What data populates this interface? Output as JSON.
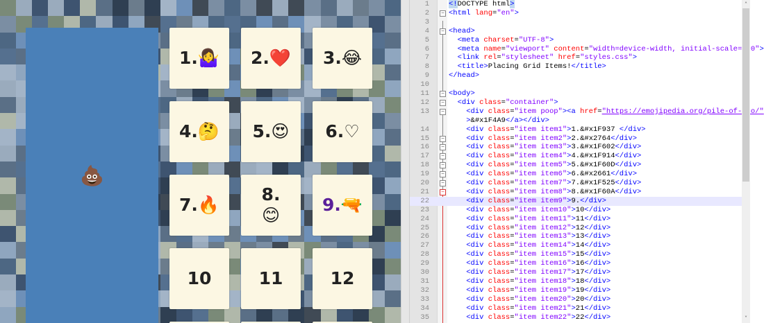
{
  "browser": {
    "poop_emoji": "💩",
    "cards": [
      {
        "label": "1.🤷‍♀️"
      },
      {
        "label": "2.❤️"
      },
      {
        "label": "3.😂"
      },
      {
        "label": "4.🤔"
      },
      {
        "label": "5.😍"
      },
      {
        "label": "6.♡"
      },
      {
        "label": "7.🔥"
      },
      {
        "label": "8.\n😊"
      },
      {
        "label": "9.🔫"
      },
      {
        "label": "10"
      },
      {
        "label": "11"
      },
      {
        "label": "12"
      },
      {
        "label": ""
      },
      {
        "label": ""
      },
      {
        "label": ""
      }
    ],
    "colors": {
      "panel": "#4a80b8",
      "card": "#fcf7e3",
      "item9": "#5b1f9a"
    }
  },
  "editor": {
    "lines": [
      {
        "num": "1",
        "segs": [
          [
            "t sel",
            "<!"
          ],
          [
            "x",
            "DOCTYPE html"
          ],
          [
            "t sel",
            ">"
          ]
        ]
      },
      {
        "num": "2",
        "fold": "box",
        "segs": [
          [
            "t",
            "<html "
          ],
          [
            "a",
            "lang"
          ],
          [
            "x",
            "="
          ],
          [
            "v",
            "\"en\""
          ],
          [
            "t",
            ">"
          ]
        ]
      },
      {
        "num": "3",
        "segs": []
      },
      {
        "num": "4",
        "fold": "box",
        "segs": [
          [
            "t",
            "<head>"
          ]
        ]
      },
      {
        "num": "5",
        "segs": [
          [
            "t",
            "  <meta "
          ],
          [
            "a",
            "charset"
          ],
          [
            "x",
            "="
          ],
          [
            "v",
            "\"UTF-8\""
          ],
          [
            "t",
            ">"
          ]
        ]
      },
      {
        "num": "6",
        "segs": [
          [
            "t",
            "  <meta "
          ],
          [
            "a",
            "name"
          ],
          [
            "x",
            "="
          ],
          [
            "v",
            "\"viewport\""
          ],
          [
            "t",
            " "
          ],
          [
            "a",
            "content"
          ],
          [
            "x",
            "="
          ],
          [
            "v",
            "\"width=device-width, initial-scale=1.0\""
          ],
          [
            "t",
            ">"
          ]
        ]
      },
      {
        "num": "7",
        "segs": [
          [
            "t",
            "  <link "
          ],
          [
            "a",
            "rel"
          ],
          [
            "x",
            "="
          ],
          [
            "v",
            "\"stylesheet\""
          ],
          [
            "t",
            " "
          ],
          [
            "a",
            "href"
          ],
          [
            "x",
            "="
          ],
          [
            "v",
            "\"styles.css\""
          ],
          [
            "t",
            ">"
          ]
        ]
      },
      {
        "num": "8",
        "segs": [
          [
            "t",
            "  <title>"
          ],
          [
            "x",
            "Placing Grid Items!"
          ],
          [
            "t",
            "</title>"
          ]
        ]
      },
      {
        "num": "9",
        "segs": [
          [
            "t",
            "</head>"
          ]
        ]
      },
      {
        "num": "10",
        "segs": []
      },
      {
        "num": "11",
        "fold": "box",
        "segs": [
          [
            "t",
            "<body>"
          ]
        ]
      },
      {
        "num": "12",
        "fold": "box",
        "segs": [
          [
            "t",
            "  <div "
          ],
          [
            "a",
            "class"
          ],
          [
            "x",
            "="
          ],
          [
            "v",
            "\"container\""
          ],
          [
            "t",
            ">"
          ]
        ]
      },
      {
        "num": "13",
        "fold": "box",
        "segs": [
          [
            "t",
            "    <div "
          ],
          [
            "a",
            "class"
          ],
          [
            "x",
            "="
          ],
          [
            "v",
            "\"item poop\""
          ],
          [
            "t",
            ">"
          ],
          [
            "t",
            "<a "
          ],
          [
            "a",
            "href"
          ],
          [
            "x",
            "="
          ],
          [
            "u",
            "\"https://emojipedia.org/pile-of-poo/\""
          ]
        ]
      },
      {
        "num": "",
        "segs": [
          [
            "t",
            "    >"
          ],
          [
            "x",
            "&#x1F4A9"
          ],
          [
            "t",
            "</a></div>"
          ]
        ]
      },
      {
        "num": "14",
        "segs": [
          [
            "t",
            "    <div "
          ],
          [
            "a",
            "class"
          ],
          [
            "x",
            "="
          ],
          [
            "v",
            "\"item item1\""
          ],
          [
            "t",
            ">"
          ],
          [
            "x",
            "1.&#x1F937 "
          ],
          [
            "t",
            "</div>"
          ]
        ]
      },
      {
        "num": "15",
        "fold": "box",
        "segs": [
          [
            "t",
            "    <div "
          ],
          [
            "a",
            "class"
          ],
          [
            "x",
            "="
          ],
          [
            "v",
            "\"item item2\""
          ],
          [
            "t",
            ">"
          ],
          [
            "x",
            "2.&#x2764"
          ],
          [
            "t",
            "</div>"
          ]
        ]
      },
      {
        "num": "16",
        "fold": "box",
        "segs": [
          [
            "t",
            "    <div "
          ],
          [
            "a",
            "class"
          ],
          [
            "x",
            "="
          ],
          [
            "v",
            "\"item item3\""
          ],
          [
            "t",
            ">"
          ],
          [
            "x",
            "3.&#x1F602"
          ],
          [
            "t",
            "</div>"
          ]
        ]
      },
      {
        "num": "17",
        "fold": "box",
        "segs": [
          [
            "t",
            "    <div "
          ],
          [
            "a",
            "class"
          ],
          [
            "x",
            "="
          ],
          [
            "v",
            "\"item item4\""
          ],
          [
            "t",
            ">"
          ],
          [
            "x",
            "4.&#x1F914"
          ],
          [
            "t",
            "</div>"
          ]
        ]
      },
      {
        "num": "18",
        "fold": "box",
        "segs": [
          [
            "t",
            "    <div "
          ],
          [
            "a",
            "class"
          ],
          [
            "x",
            "="
          ],
          [
            "v",
            "\"item item5\""
          ],
          [
            "t",
            ">"
          ],
          [
            "x",
            "5.&#x1F60D"
          ],
          [
            "t",
            "</div>"
          ]
        ]
      },
      {
        "num": "19",
        "fold": "box",
        "segs": [
          [
            "t",
            "    <div "
          ],
          [
            "a",
            "class"
          ],
          [
            "x",
            "="
          ],
          [
            "v",
            "\"item item6\""
          ],
          [
            "t",
            ">"
          ],
          [
            "x",
            "6.&#x2661"
          ],
          [
            "t",
            "</div>"
          ]
        ]
      },
      {
        "num": "20",
        "fold": "box",
        "segs": [
          [
            "t",
            "    <div "
          ],
          [
            "a",
            "class"
          ],
          [
            "x",
            "="
          ],
          [
            "v",
            "\"item item7\""
          ],
          [
            "t",
            ">"
          ],
          [
            "x",
            "7.&#x1F525"
          ],
          [
            "t",
            "</div>"
          ]
        ]
      },
      {
        "num": "21",
        "fold": "red",
        "segs": [
          [
            "t",
            "    <div "
          ],
          [
            "a",
            "class"
          ],
          [
            "x",
            "="
          ],
          [
            "v",
            "\"item item8\""
          ],
          [
            "t",
            ">"
          ],
          [
            "x",
            "8.&#x1F60A"
          ],
          [
            "t",
            "</div>"
          ]
        ]
      },
      {
        "num": "22",
        "current": true,
        "segs": [
          [
            "t",
            "    <div "
          ],
          [
            "a",
            "class"
          ],
          [
            "x",
            "="
          ],
          [
            "v",
            "\"item item9\""
          ],
          [
            "t",
            ">"
          ],
          [
            "x",
            "9."
          ],
          [
            "t",
            "</div>"
          ]
        ]
      },
      {
        "num": "23",
        "segs": [
          [
            "t",
            "    <div "
          ],
          [
            "a",
            "class"
          ],
          [
            "x",
            "="
          ],
          [
            "v",
            "\"item item10\""
          ],
          [
            "t",
            ">"
          ],
          [
            "x",
            "10"
          ],
          [
            "t",
            "</div>"
          ]
        ]
      },
      {
        "num": "24",
        "segs": [
          [
            "t",
            "    <div "
          ],
          [
            "a",
            "class"
          ],
          [
            "x",
            "="
          ],
          [
            "v",
            "\"item item11\""
          ],
          [
            "t",
            ">"
          ],
          [
            "x",
            "11"
          ],
          [
            "t",
            "</div>"
          ]
        ]
      },
      {
        "num": "25",
        "segs": [
          [
            "t",
            "    <div "
          ],
          [
            "a",
            "class"
          ],
          [
            "x",
            "="
          ],
          [
            "v",
            "\"item item12\""
          ],
          [
            "t",
            ">"
          ],
          [
            "x",
            "12"
          ],
          [
            "t",
            "</div>"
          ]
        ]
      },
      {
        "num": "26",
        "segs": [
          [
            "t",
            "    <div "
          ],
          [
            "a",
            "class"
          ],
          [
            "x",
            "="
          ],
          [
            "v",
            "\"item item13\""
          ],
          [
            "t",
            ">"
          ],
          [
            "x",
            "13"
          ],
          [
            "t",
            "</div>"
          ]
        ]
      },
      {
        "num": "27",
        "segs": [
          [
            "t",
            "    <div "
          ],
          [
            "a",
            "class"
          ],
          [
            "x",
            "="
          ],
          [
            "v",
            "\"item item14\""
          ],
          [
            "t",
            ">"
          ],
          [
            "x",
            "14"
          ],
          [
            "t",
            "</div>"
          ]
        ]
      },
      {
        "num": "28",
        "segs": [
          [
            "t",
            "    <div "
          ],
          [
            "a",
            "class"
          ],
          [
            "x",
            "="
          ],
          [
            "v",
            "\"item item15\""
          ],
          [
            "t",
            ">"
          ],
          [
            "x",
            "15"
          ],
          [
            "t",
            "</div>"
          ]
        ]
      },
      {
        "num": "29",
        "segs": [
          [
            "t",
            "    <div "
          ],
          [
            "a",
            "class"
          ],
          [
            "x",
            "="
          ],
          [
            "v",
            "\"item item16\""
          ],
          [
            "t",
            ">"
          ],
          [
            "x",
            "16"
          ],
          [
            "t",
            "</div>"
          ]
        ]
      },
      {
        "num": "30",
        "segs": [
          [
            "t",
            "    <div "
          ],
          [
            "a",
            "class"
          ],
          [
            "x",
            "="
          ],
          [
            "v",
            "\"item item17\""
          ],
          [
            "t",
            ">"
          ],
          [
            "x",
            "17"
          ],
          [
            "t",
            "</div>"
          ]
        ]
      },
      {
        "num": "31",
        "segs": [
          [
            "t",
            "    <div "
          ],
          [
            "a",
            "class"
          ],
          [
            "x",
            "="
          ],
          [
            "v",
            "\"item item18\""
          ],
          [
            "t",
            ">"
          ],
          [
            "x",
            "18"
          ],
          [
            "t",
            "</div>"
          ]
        ]
      },
      {
        "num": "32",
        "segs": [
          [
            "t",
            "    <div "
          ],
          [
            "a",
            "class"
          ],
          [
            "x",
            "="
          ],
          [
            "v",
            "\"item item19\""
          ],
          [
            "t",
            ">"
          ],
          [
            "x",
            "19"
          ],
          [
            "t",
            "</div>"
          ]
        ]
      },
      {
        "num": "33",
        "segs": [
          [
            "t",
            "    <div "
          ],
          [
            "a",
            "class"
          ],
          [
            "x",
            "="
          ],
          [
            "v",
            "\"item item20\""
          ],
          [
            "t",
            ">"
          ],
          [
            "x",
            "20"
          ],
          [
            "t",
            "</div>"
          ]
        ]
      },
      {
        "num": "34",
        "segs": [
          [
            "t",
            "    <div "
          ],
          [
            "a",
            "class"
          ],
          [
            "x",
            "="
          ],
          [
            "v",
            "\"item item21\""
          ],
          [
            "t",
            ">"
          ],
          [
            "x",
            "21"
          ],
          [
            "t",
            "</div>"
          ]
        ]
      },
      {
        "num": "35",
        "segs": [
          [
            "t",
            "    <div "
          ],
          [
            "a",
            "class"
          ],
          [
            "x",
            "="
          ],
          [
            "v",
            "\"item item22\""
          ],
          [
            "t",
            ">"
          ],
          [
            "x",
            "22"
          ],
          [
            "t",
            "</div>"
          ]
        ]
      }
    ]
  }
}
